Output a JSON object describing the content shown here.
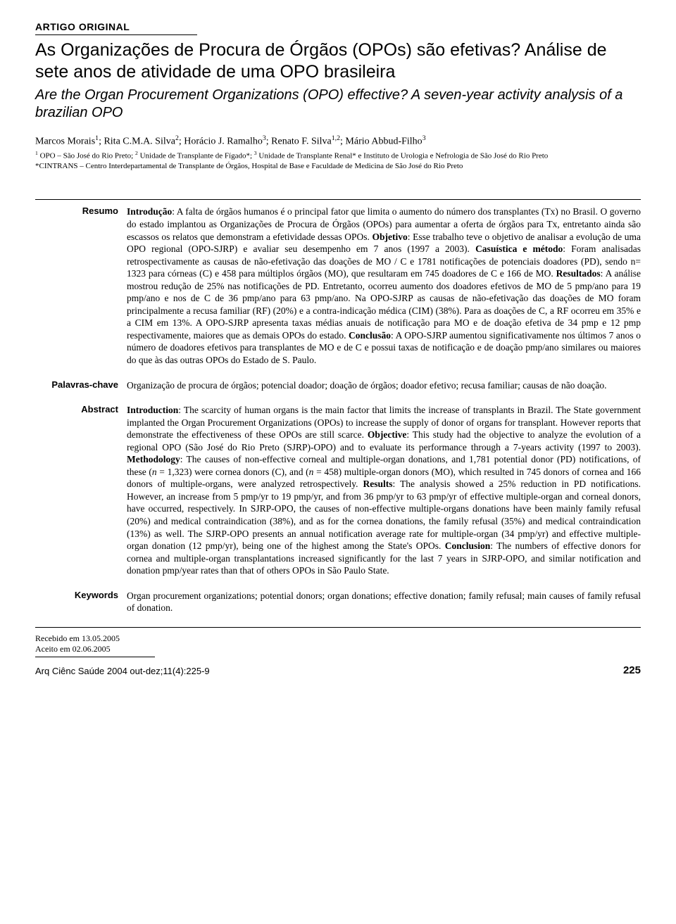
{
  "header": {
    "article_type": "ARTIGO ORIGINAL",
    "title_pt": "As Organizações de Procura de Órgãos (OPOs) são efetivas? Análise de sete anos de atividade de uma OPO brasileira",
    "title_en": "Are the Organ Procurement Organizations (OPO) effective? A seven-year activity analysis of a brazilian OPO"
  },
  "authors": {
    "line": "Marcos Morais¹; Rita C.M.A. Silva²; Horácio J. Ramalho³; Renato F. Silva¹,²; Mário Abbud-Filho³",
    "affiliations": "¹ OPO – São José do Rio Preto; ² Unidade de Transplante de Fígado*; ³ Unidade de Transplante Renal* e Instituto de Urologia e Nefrologia de São José do Rio Preto\n*CINTRANS – Centro Interdepartamental de Transplante de Órgãos, Hospital de Base e Faculdade de Medicina de São José do Rio Preto"
  },
  "sections": {
    "resumo": {
      "label": "Resumo",
      "body_html": "<b>Introdução</b>: A falta de órgãos humanos é o principal fator que limita o aumento do número dos transplantes (Tx) no Brasil. O governo do estado implantou as Organizações de Procura de Órgãos (OPOs) para aumentar a oferta de órgãos para Tx, entretanto ainda são escassos os relatos que demonstram a efetividade dessas OPOs. <b>Objetivo</b>: Esse trabalho teve o objetivo de analisar a evolução de uma OPO regional (OPO-SJRP) e avaliar seu desempenho em 7 anos (1997 a 2003). <b>Casuística e método</b>: Foram analisadas retrospectivamente as causas de não-efetivação das doações de MO / C e 1781 notificações de potenciais doadores (PD), sendo n= 1323 para córneas (C) e 458 para múltiplos órgãos (MO), que resultaram em 745 doadores de C e 166 de MO. <b>Resultados</b>: A análise mostrou redução de 25% nas notificações de PD. Entretanto, ocorreu aumento dos doadores efetivos de MO de 5 pmp/ano para 19 pmp/ano e nos de C de 36 pmp/ano para 63 pmp/ano. Na OPO-SJRP as causas de não-efetivação das doações de MO foram principalmente a recusa familiar (RF) (20%) e a contra-indicação médica (CIM) (38%). Para as doações de C, a RF ocorreu em 35% e a CIM em 13%. A OPO-SJRP apresenta taxas médias anuais de notificação para MO e de doação efetiva de 34 pmp e 12 pmp respectivamente, maiores que as demais OPOs do estado. <b>Conclusão</b>: A OPO-SJRP aumentou significativamente nos últimos 7 anos o número de doadores efetivos para transplantes de MO e de C e possui taxas de notificação e de doação pmp/ano similares ou maiores do que às das outras OPOs do Estado de S. Paulo."
    },
    "palavras": {
      "label": "Palavras-chave",
      "body": "Organização de procura de órgãos; potencial doador; doação de órgãos; doador efetivo; recusa familiar; causas de não doação."
    },
    "abstract": {
      "label": "Abstract",
      "body_html": "<b>Introduction</b>: The scarcity of human organs is the main factor that limits the increase of transplants in Brazil. The State government implanted the Organ Procurement Organizations (OPOs) to increase the supply of donor of organs for transplant. However reports that demonstrate the effectiveness of these OPOs are still scarce. <b>Objective</b>: This study had the objective to analyze the evolution of a regional OPO (São José do Rio Preto (SJRP)-OPO) and to evaluate its performance through a 7-years activity (1997 to 2003). <b>Methodology</b>: The causes of non-effective corneal and multiple-organ donations, and 1,781 potential donor (PD) notifications, of these (<i>n</i> = 1,323) were cornea donors (C), and (<i>n</i> = 458) multiple-organ donors (MO), which resulted in 745 donors of cornea and 166 donors of multiple-organs, were analyzed retrospectively. <b>Results</b>: The analysis showed a 25% reduction in PD notifications. However, an increase from 5 pmp/yr to 19 pmp/yr, and from 36 pmp/yr to 63 pmp/yr of effective multiple-organ and corneal donors, have occurred, respectively. In SJRP-OPO, the causes of non-effective multiple-organs donations have been mainly family refusal (20%) and medical contraindication (38%), and as for the cornea donations, the family refusal (35%) and medical contraindication (13%) as well. The SJRP-OPO presents an annual notification average rate for multiple-organ (34 pmp/yr) and effective multiple-organ donation (12 pmp/yr), being one of the highest among the State's OPOs. <b>Conclusion</b>: The numbers of effective donors for cornea and multiple-organ transplantations increased significantly for the last 7 years in SJRP-OPO, and similar notification and donation pmp/year rates than that of others OPOs in São Paulo State."
    },
    "keywords": {
      "label": "Keywords",
      "body": "Organ procurement organizations; potential donors; organ donations; effective donation; family refusal; main causes of family refusal of donation."
    }
  },
  "footer": {
    "received": "Recebido em 13.05.2005",
    "accepted": "Aceito em 02.06.2005",
    "journal": "Arq Ciênc Saúde 2004 out-dez;11(4):225-9",
    "page": "225"
  }
}
